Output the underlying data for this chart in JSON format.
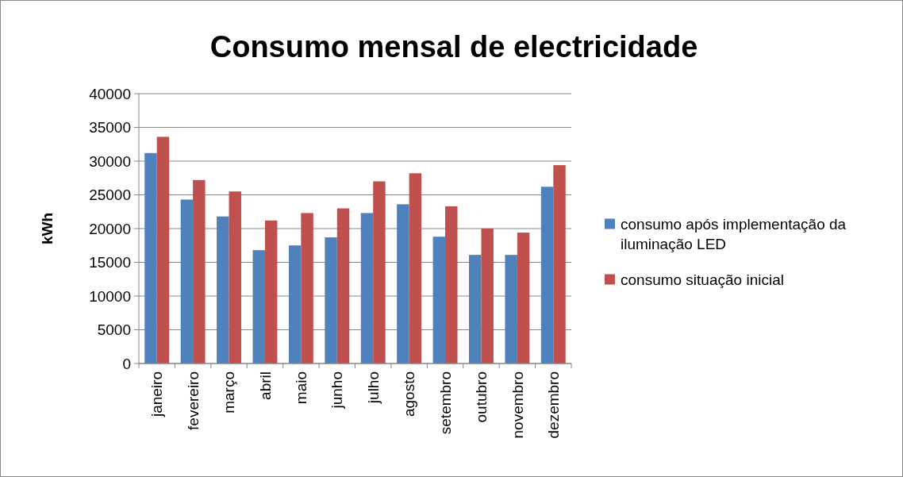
{
  "chart_data": {
    "type": "bar",
    "title": "Consumo mensal de electricidade",
    "ylabel": "kWh",
    "categories": [
      "janeiro",
      "fevereiro",
      "março",
      "abril",
      "maio",
      "junho",
      "julho",
      "agosto",
      "setembro",
      "outubro",
      "novembro",
      "dezembro"
    ],
    "series": [
      {
        "name": "consumo após implementação da iluminação LED",
        "color": "#4f81bd",
        "values": [
          31200,
          24300,
          21800,
          16800,
          17500,
          18700,
          22300,
          23600,
          18800,
          16100,
          16100,
          26200
        ]
      },
      {
        "name": "consumo situação inicial",
        "color": "#c0504d",
        "values": [
          33600,
          27200,
          25500,
          21200,
          22300,
          23000,
          27000,
          28200,
          23300,
          20000,
          19400,
          29400
        ]
      }
    ],
    "ylim": [
      0,
      40000
    ],
    "yticks": [
      0,
      5000,
      10000,
      15000,
      20000,
      25000,
      30000,
      35000,
      40000
    ],
    "grid": "y",
    "legend": "right"
  }
}
